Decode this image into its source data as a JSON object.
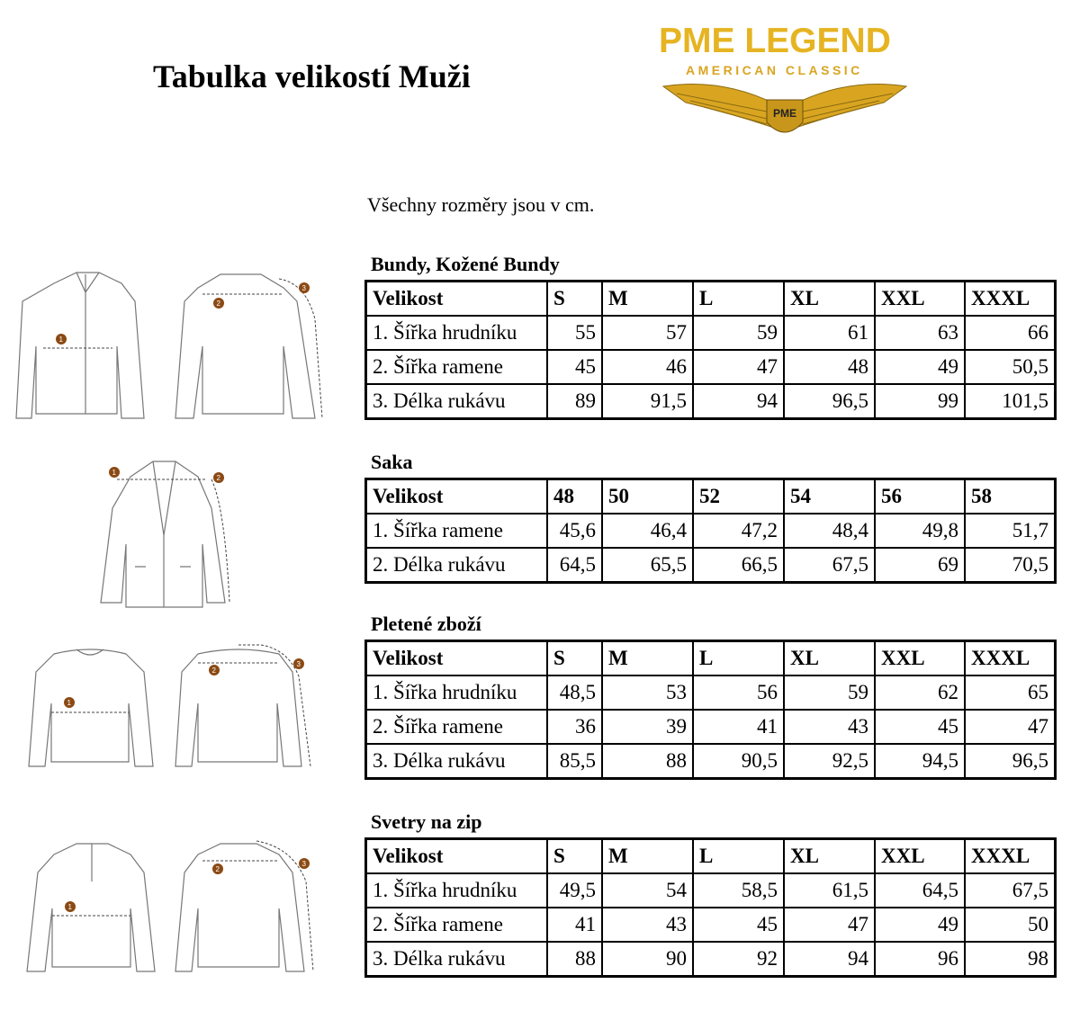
{
  "title": "Tabulka velikostí Muži",
  "logo": {
    "line1": "PME LEGEND",
    "line2": "AMERICAN CLASSIC",
    "badge": "PME",
    "color": "#e6b422"
  },
  "note": "Všechny rozměry jsou v cm.",
  "badge_color": "#8b4a14",
  "sections": [
    {
      "title": "Bundy, Kožené Bundy",
      "header": [
        "Velikost",
        "S",
        "M",
        "L",
        "XL",
        "XXL",
        "XXXL"
      ],
      "rows": [
        [
          "1. Šířka hrudníku",
          "55",
          "57",
          "59",
          "61",
          "63",
          "66"
        ],
        [
          "2. Šířka ramene",
          "45",
          "46",
          "47",
          "48",
          "49",
          "50,5"
        ],
        [
          "3. Délka rukávu",
          "89",
          "91,5",
          "94",
          "96,5",
          "99",
          "101,5"
        ]
      ]
    },
    {
      "title": "Saka",
      "header": [
        "Velikost",
        "48",
        "50",
        "52",
        "54",
        "56",
        "58"
      ],
      "rows": [
        [
          "1. Šířka ramene",
          "45,6",
          "46,4",
          "47,2",
          "48,4",
          "49,8",
          "51,7"
        ],
        [
          "2. Délka rukávu",
          "64,5",
          "65,5",
          "66,5",
          "67,5",
          "69",
          "70,5"
        ]
      ]
    },
    {
      "title": "Pletené zboží",
      "header": [
        "Velikost",
        "S",
        "M",
        "L",
        "XL",
        "XXL",
        "XXXL"
      ],
      "rows": [
        [
          "1. Šířka hrudníku",
          "48,5",
          "53",
          "56",
          "59",
          "62",
          "65"
        ],
        [
          "2. Šířka ramene",
          "36",
          "39",
          "41",
          "43",
          "45",
          "47"
        ],
        [
          "3. Délka rukávu",
          "85,5",
          "88",
          "90,5",
          "92,5",
          "94,5",
          "96,5"
        ]
      ]
    },
    {
      "title": "Svetry na zip",
      "header": [
        "Velikost",
        "S",
        "M",
        "L",
        "XL",
        "XXL",
        "XXXL"
      ],
      "rows": [
        [
          "1. Šířka hrudníku",
          "49,5",
          "54",
          "58,5",
          "61,5",
          "64,5",
          "67,5"
        ],
        [
          "2. Šířka ramene",
          "41",
          "43",
          "45",
          "47",
          "49",
          "50"
        ],
        [
          "3. Délka rukávu",
          "88",
          "90",
          "92",
          "94",
          "96",
          "98"
        ]
      ]
    }
  ],
  "markers": [
    "1",
    "2",
    "3"
  ]
}
